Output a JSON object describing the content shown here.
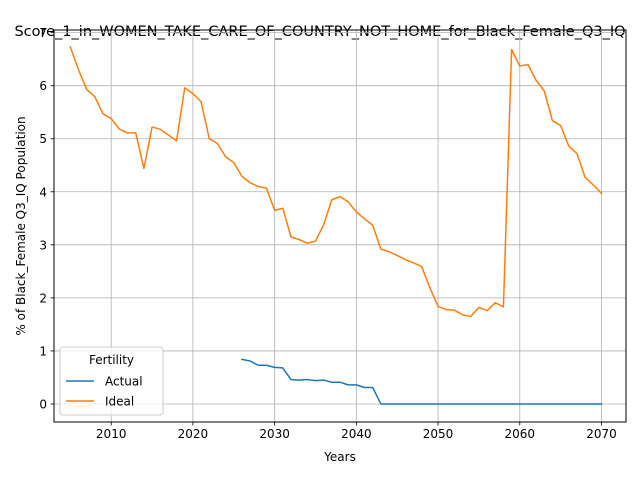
{
  "chart_data": {
    "type": "line",
    "title": "Score_1_in_WOMEN_TAKE_CARE_OF_COUNTRY_NOT_HOME_for_Black_Female_Q3_IQ",
    "xlabel": "Years",
    "ylabel": "% of Black_Female Q3_IQ Population",
    "xlim": [
      2003,
      2073
    ],
    "ylim": [
      -0.34,
      7.05
    ],
    "xticks": [
      2010,
      2020,
      2030,
      2040,
      2050,
      2060,
      2070
    ],
    "yticks": [
      0,
      1,
      2,
      3,
      4,
      5,
      6,
      7
    ],
    "grid": true,
    "legend": {
      "title": "Fertility",
      "placement": "lower-left"
    },
    "series": [
      {
        "name": "Actual",
        "color": "#1f77b4",
        "x": [
          2026,
          2027,
          2028,
          2029,
          2030,
          2031,
          2032,
          2033,
          2034,
          2035,
          2036,
          2037,
          2038,
          2039,
          2040,
          2041,
          2042,
          2043,
          2044,
          2045,
          2046,
          2047,
          2048,
          2049,
          2050,
          2051,
          2052,
          2053,
          2054,
          2055,
          2056,
          2057,
          2058,
          2059,
          2060,
          2061,
          2062,
          2063,
          2064,
          2065,
          2066,
          2067,
          2068,
          2069,
          2070
        ],
        "y": [
          0.84,
          0.81,
          0.73,
          0.73,
          0.69,
          0.68,
          0.46,
          0.45,
          0.46,
          0.44,
          0.45,
          0.41,
          0.41,
          0.36,
          0.36,
          0.31,
          0.31,
          0.0,
          0.0,
          0.0,
          0.0,
          0.0,
          0.0,
          0.0,
          0.0,
          0.0,
          0.0,
          0.0,
          0.0,
          0.0,
          0.0,
          0.0,
          0.0,
          0.0,
          0.0,
          0.0,
          0.0,
          0.0,
          0.0,
          0.0,
          0.0,
          0.0,
          0.0,
          0.0,
          0.0
        ]
      },
      {
        "name": "Ideal",
        "color": "#ff7f0e",
        "x": [
          2005,
          2006,
          2007,
          2008,
          2009,
          2010,
          2011,
          2012,
          2013,
          2014,
          2015,
          2016,
          2017,
          2018,
          2019,
          2020,
          2021,
          2022,
          2023,
          2024,
          2025,
          2026,
          2027,
          2028,
          2029,
          2030,
          2031,
          2032,
          2033,
          2034,
          2035,
          2036,
          2037,
          2038,
          2039,
          2040,
          2041,
          2042,
          2043,
          2044,
          2045,
          2046,
          2047,
          2048,
          2049,
          2050,
          2051,
          2052,
          2053,
          2054,
          2055,
          2056,
          2057,
          2058,
          2059,
          2060,
          2061,
          2062,
          2063,
          2064,
          2065,
          2066,
          2067,
          2068,
          2069,
          2070
        ],
        "y": [
          6.73,
          6.3,
          5.93,
          5.79,
          5.47,
          5.38,
          5.18,
          5.11,
          5.11,
          4.44,
          5.22,
          5.18,
          5.07,
          4.96,
          5.96,
          5.85,
          5.7,
          5.0,
          4.91,
          4.66,
          4.55,
          4.29,
          4.17,
          4.1,
          4.07,
          3.65,
          3.69,
          3.15,
          3.1,
          3.03,
          3.07,
          3.38,
          3.85,
          3.91,
          3.81,
          3.62,
          3.49,
          3.37,
          2.92,
          2.87,
          2.8,
          2.72,
          2.66,
          2.59,
          2.19,
          1.84,
          1.78,
          1.77,
          1.68,
          1.65,
          1.82,
          1.76,
          1.91,
          1.83,
          6.68,
          6.37,
          6.4,
          6.1,
          5.9,
          5.34,
          5.25,
          4.86,
          4.72,
          4.27,
          4.13,
          3.97
        ]
      }
    ]
  }
}
